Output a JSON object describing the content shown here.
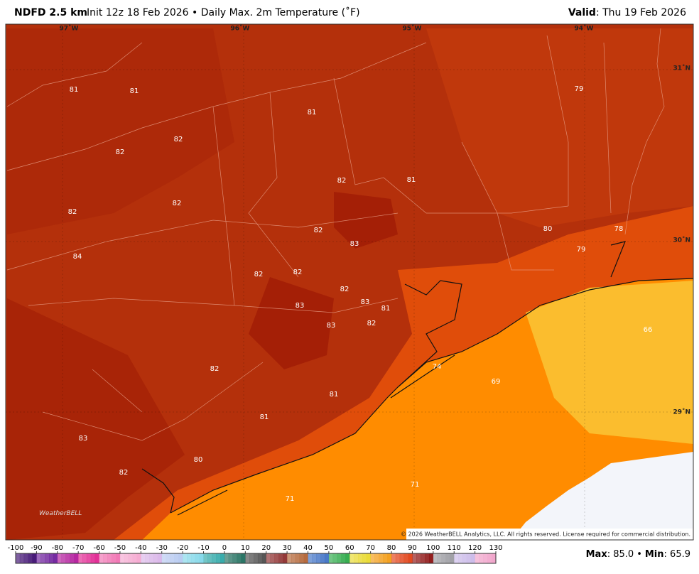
{
  "header": {
    "model": "NDFD 2.5 km",
    "description": "Init 12z 18 Feb 2026 • Daily Max. 2m Temperature (˚F)",
    "valid_label": "Valid",
    "valid_value": ": Thu 19 Feb 2026"
  },
  "longitude_labels": [
    "97˚W",
    "96˚W",
    "95˚W",
    "94˚W"
  ],
  "latitude_labels": [
    "31˚N",
    "30˚N",
    "29˚N"
  ],
  "temperature_labels": [
    81,
    81,
    81,
    79,
    82,
    82,
    82,
    81,
    82,
    82,
    82,
    83,
    80,
    78,
    79,
    84,
    82,
    82,
    82,
    83,
    81,
    83,
    83,
    82,
    66,
    74,
    69,
    82,
    81,
    81,
    83,
    80,
    82,
    71,
    71
  ],
  "copyright": "© 2026 WeatherBELL Analytics, LLC. All rights reserved. License required for commercial distribution.",
  "logo": "WeatherBELL",
  "colorbar_ticks": [
    -100,
    -90,
    -80,
    -70,
    -60,
    -50,
    -40,
    -30,
    -20,
    -10,
    0,
    10,
    20,
    30,
    40,
    50,
    60,
    70,
    80,
    90,
    100,
    110,
    120,
    130
  ],
  "stats": {
    "max_label": "Max",
    "max_value": 85.0,
    "separator": "•",
    "min_label": "Min",
    "min_value": 65.9
  }
}
